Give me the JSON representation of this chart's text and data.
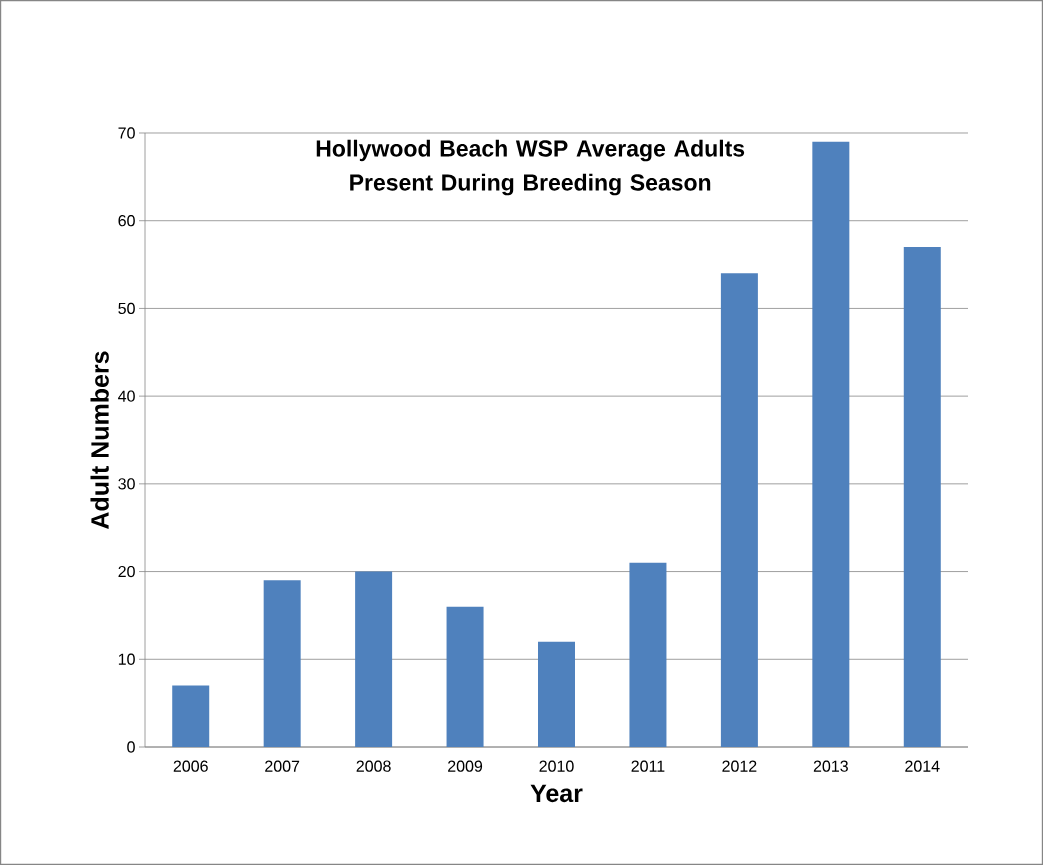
{
  "chart_data": {
    "type": "bar",
    "title": "Hollywood Beach WSP Average Adults Present During Breeding Season",
    "xlabel": "Year",
    "ylabel": "Adult Numbers",
    "categories": [
      "2006",
      "2007",
      "2008",
      "2009",
      "2010",
      "2011",
      "2012",
      "2013",
      "2014"
    ],
    "values": [
      7,
      19,
      20,
      16,
      12,
      21,
      54,
      69,
      57
    ],
    "color": "#4f81bd",
    "ylim": [
      0,
      70
    ],
    "yticks": [
      0,
      10,
      20,
      30,
      40,
      50,
      60,
      70
    ],
    "grid": "y"
  }
}
